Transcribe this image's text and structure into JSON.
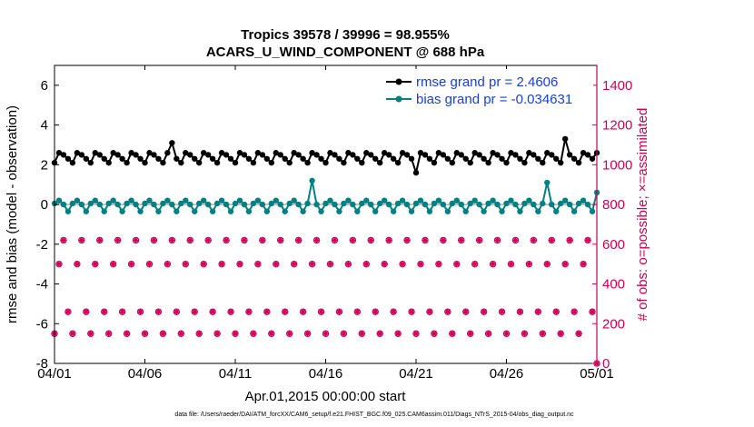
{
  "chart_data": {
    "type": "line",
    "title_line1": "Tropics 39578 / 39996 = 98.955%",
    "title_line2": "ACARS_U_WIND_COMPONENT @ 688 hPa",
    "xlabel": "Apr.01,2015 00:00:00 start",
    "ylabel_left": "rmse and bias (model - observation)",
    "ylabel_right": "# of obs: o=possible; ×=assimilated",
    "footer": "data file: /Users/raeder/DAI/ATM_forcXX/CAM6_setup/f.e21.FHIST_BGC.f09_025.CAM6assim.011/Diags_NTrS_2015-04/obs_diag_output.nc",
    "xlim": [
      1,
      31
    ],
    "x_ticks": [
      1,
      6,
      11,
      16,
      21,
      26,
      31
    ],
    "x_tick_labels": [
      "04/01",
      "04/06",
      "04/11",
      "04/16",
      "04/21",
      "04/26",
      "05/01"
    ],
    "ylim_left": [
      -8,
      7
    ],
    "y_ticks_left": [
      -8,
      -6,
      -4,
      -2,
      0,
      2,
      4,
      6
    ],
    "y_tick_labels_left": [
      "-8",
      "-6",
      "-4",
      "-2",
      "0",
      "2",
      "4",
      "6"
    ],
    "ylim_right": [
      0,
      1500
    ],
    "y_ticks_right": [
      0,
      200,
      400,
      600,
      800,
      1000,
      1200,
      1400
    ],
    "y_tick_labels_right": [
      "0",
      "200",
      "400",
      "600",
      "800",
      "1000",
      "1200",
      "1400"
    ],
    "cycle": {
      "start_day": 1.0,
      "step_days": 0.25,
      "rmse_base": [
        2.1,
        2.6,
        2.5,
        2.3
      ],
      "bias_base": [
        0.05,
        0.2,
        0.0,
        -0.35
      ],
      "obs_base": [
        150,
        500,
        620,
        260
      ]
    },
    "series": [
      {
        "name": "rmse",
        "legend_label": "rmse grand pr = 2.4606",
        "color": "#000000",
        "marker": "filled-circle",
        "values": [
          2.1,
          2.6,
          2.5,
          2.3,
          2.1,
          2.6,
          2.5,
          2.3,
          2.1,
          2.6,
          2.5,
          2.3,
          2.1,
          2.6,
          2.5,
          2.3,
          2.1,
          2.6,
          2.5,
          2.3,
          2.1,
          2.6,
          2.5,
          2.3,
          2.1,
          2.6,
          3.1,
          2.3,
          2.1,
          2.6,
          2.5,
          2.3,
          2.1,
          2.6,
          2.5,
          2.3,
          2.1,
          2.6,
          2.5,
          2.3,
          2.1,
          2.6,
          2.5,
          2.3,
          2.1,
          2.6,
          2.5,
          2.3,
          2.1,
          2.6,
          2.5,
          2.3,
          2.1,
          2.6,
          2.5,
          2.3,
          2.1,
          2.6,
          2.5,
          2.3,
          2.1,
          2.6,
          2.5,
          2.3,
          2.1,
          2.6,
          2.5,
          2.3,
          2.1,
          2.6,
          2.5,
          2.3,
          2.1,
          2.6,
          2.5,
          2.3,
          2.1,
          2.6,
          2.5,
          2.3,
          1.6,
          2.6,
          2.5,
          2.3,
          2.1,
          2.6,
          2.5,
          2.3,
          2.1,
          2.6,
          2.5,
          2.3,
          2.1,
          2.6,
          2.5,
          2.3,
          2.1,
          2.6,
          2.5,
          2.3,
          2.1,
          2.6,
          2.5,
          2.3,
          2.1,
          2.6,
          2.5,
          2.3,
          2.1,
          2.6,
          2.5,
          2.3,
          2.1,
          3.3,
          2.5,
          2.3,
          2.1,
          2.6,
          2.5,
          2.3,
          2.6
        ]
      },
      {
        "name": "bias",
        "legend_label": "bias grand pr = -0.034631",
        "color": "#008080",
        "marker": "filled-circle",
        "values": [
          0.05,
          0.2,
          0.0,
          -0.35,
          0.05,
          0.2,
          0.0,
          -0.35,
          0.05,
          0.2,
          0.0,
          -0.35,
          0.05,
          0.2,
          0.0,
          -0.35,
          0.05,
          0.2,
          0.0,
          -0.35,
          0.05,
          0.2,
          0.0,
          -0.35,
          0.05,
          0.2,
          0.0,
          -0.35,
          0.05,
          0.2,
          0.0,
          -0.35,
          0.05,
          0.2,
          0.0,
          -0.35,
          0.05,
          0.2,
          0.0,
          -0.35,
          0.05,
          0.2,
          0.0,
          -0.35,
          0.05,
          0.2,
          0.0,
          -0.35,
          0.05,
          0.2,
          0.0,
          -0.35,
          0.05,
          0.2,
          0.0,
          -0.35,
          0.05,
          1.2,
          0.0,
          -0.35,
          0.05,
          0.2,
          0.0,
          -0.35,
          0.05,
          0.2,
          0.0,
          -0.35,
          0.05,
          0.2,
          0.0,
          -0.35,
          0.05,
          0.2,
          0.0,
          -0.35,
          0.05,
          0.2,
          0.0,
          -0.35,
          0.05,
          0.2,
          0.0,
          -0.35,
          0.05,
          0.2,
          0.0,
          -0.35,
          0.05,
          0.2,
          0.0,
          -0.35,
          0.05,
          0.2,
          0.0,
          -0.35,
          0.05,
          0.2,
          0.0,
          -0.35,
          0.05,
          0.2,
          0.0,
          -0.35,
          0.05,
          0.2,
          0.0,
          -0.35,
          0.05,
          1.1,
          0.0,
          -0.35,
          0.05,
          0.2,
          0.0,
          -0.35,
          0.05,
          0.2,
          0.0,
          -0.35,
          0.6
        ]
      },
      {
        "name": "obs_possible",
        "color": "#cc0055",
        "marker": "open-circle",
        "values": [
          150,
          500,
          620,
          260,
          150,
          500,
          620,
          260,
          150,
          500,
          620,
          260,
          150,
          500,
          620,
          260,
          150,
          500,
          620,
          260,
          150,
          500,
          620,
          260,
          150,
          500,
          620,
          260,
          150,
          500,
          620,
          260,
          150,
          500,
          620,
          260,
          150,
          500,
          620,
          260,
          150,
          500,
          620,
          260,
          150,
          500,
          620,
          260,
          150,
          500,
          620,
          260,
          150,
          500,
          620,
          260,
          150,
          500,
          620,
          260,
          150,
          500,
          620,
          260,
          150,
          500,
          620,
          260,
          150,
          500,
          620,
          260,
          150,
          500,
          620,
          260,
          150,
          500,
          620,
          260,
          150,
          500,
          620,
          260,
          150,
          500,
          620,
          260,
          150,
          500,
          620,
          260,
          150,
          500,
          620,
          260,
          150,
          500,
          620,
          260,
          150,
          500,
          620,
          260,
          150,
          500,
          620,
          260,
          150,
          500,
          620,
          260,
          150,
          500,
          620,
          260,
          150,
          500,
          620,
          260,
          0
        ]
      },
      {
        "name": "obs_assimilated",
        "color": "#cc0055",
        "marker": "asterisk",
        "values": [
          150,
          500,
          620,
          260,
          150,
          500,
          620,
          260,
          150,
          500,
          620,
          260,
          150,
          500,
          620,
          260,
          150,
          500,
          620,
          260,
          150,
          500,
          620,
          260,
          150,
          500,
          620,
          260,
          150,
          500,
          620,
          260,
          150,
          500,
          620,
          260,
          150,
          500,
          620,
          260,
          150,
          500,
          620,
          260,
          150,
          500,
          620,
          260,
          150,
          500,
          620,
          260,
          150,
          500,
          620,
          260,
          150,
          500,
          620,
          260,
          150,
          500,
          620,
          260,
          150,
          500,
          620,
          260,
          150,
          500,
          620,
          260,
          150,
          500,
          620,
          260,
          150,
          500,
          620,
          260,
          150,
          500,
          620,
          260,
          150,
          500,
          620,
          260,
          150,
          500,
          620,
          260,
          150,
          500,
          620,
          260,
          150,
          500,
          620,
          260,
          150,
          500,
          620,
          260,
          150,
          500,
          620,
          260,
          150,
          500,
          620,
          260,
          150,
          500,
          620,
          260,
          150,
          500,
          620,
          260,
          0
        ]
      }
    ]
  }
}
